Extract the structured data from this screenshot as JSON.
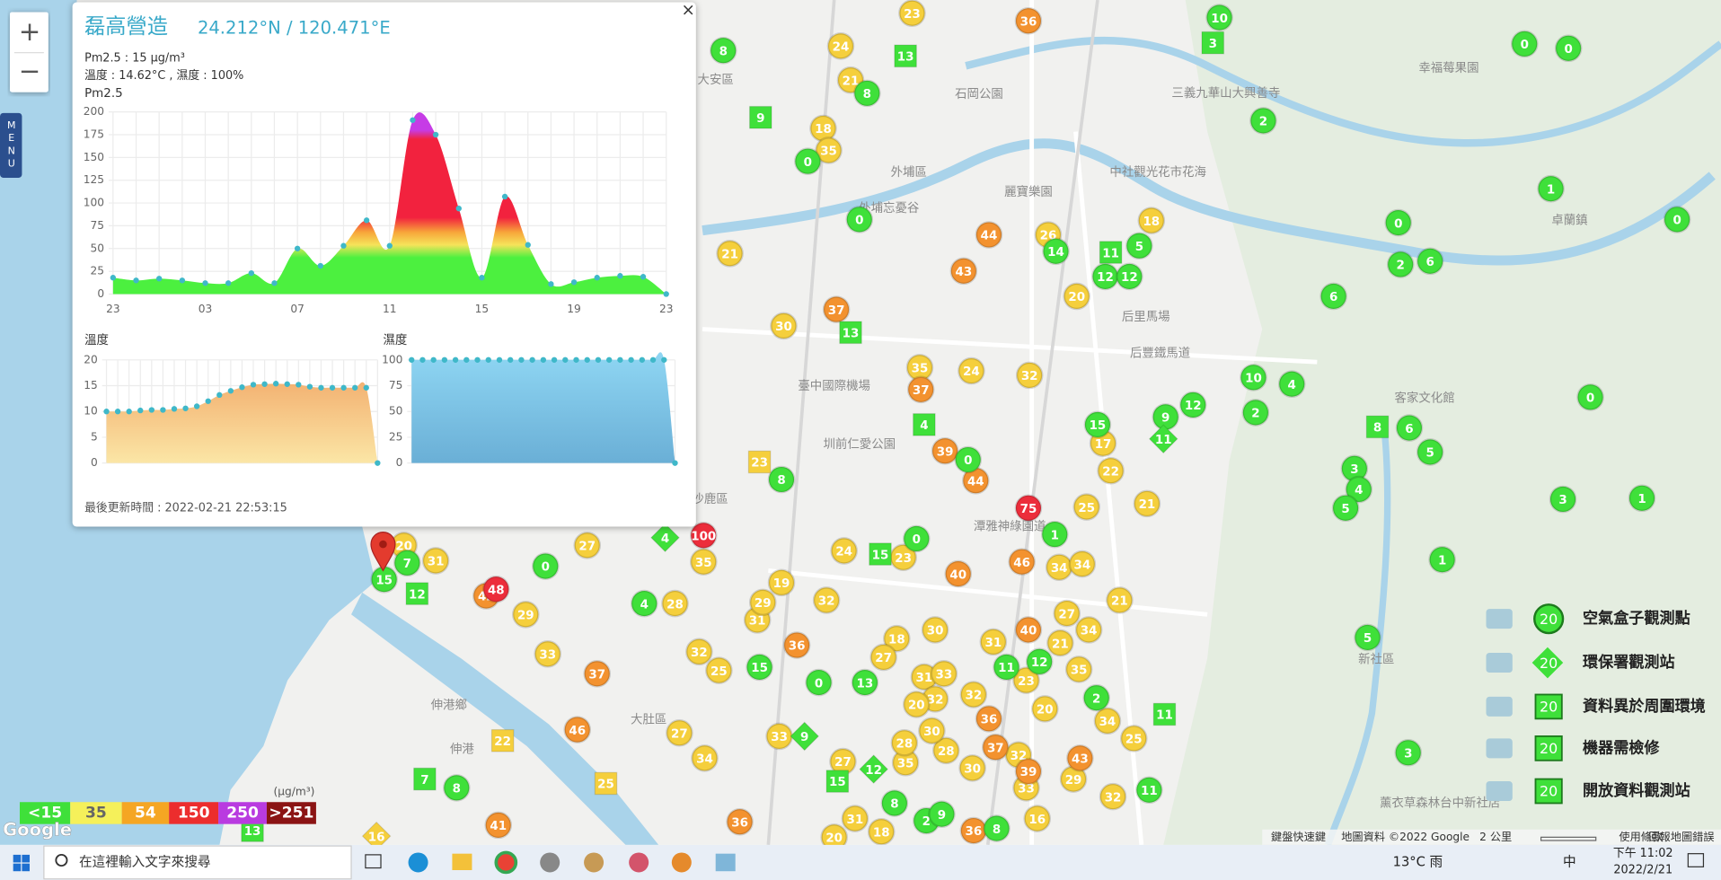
{
  "map_controls": {
    "zoom_in": "+",
    "zoom_out": "−",
    "menu": "MENU"
  },
  "popup": {
    "title": "磊高營造",
    "coords": "24.212°N / 120.471°E",
    "close": "×",
    "pm25": "Pm2.5 : 15 μg/m³",
    "weather": "溫度 : 14.62°C , 濕度 : 100%",
    "updated": "最後更新時間 : 2022-02-21 22:53:15"
  },
  "chart_data": [
    {
      "type": "area",
      "title": "Pm2.5",
      "categories": [
        "23",
        null,
        null,
        null,
        "03",
        null,
        null,
        null,
        "07",
        null,
        null,
        null,
        "11",
        null,
        null,
        null,
        "15",
        null,
        null,
        null,
        "19",
        null,
        null,
        null,
        "23"
      ],
      "values": [
        18,
        15,
        17,
        15,
        12,
        12,
        23,
        12,
        50,
        31,
        53,
        81,
        53,
        191,
        175,
        94,
        18,
        107,
        54,
        11,
        13,
        18,
        20,
        19,
        0
      ],
      "ylim": [
        0,
        200
      ],
      "yticks": [
        0,
        25,
        50,
        75,
        100,
        125,
        150,
        175,
        200
      ],
      "grid": true,
      "dot_color": "#3fb8c9"
    },
    {
      "type": "area",
      "title": "溫度",
      "values": [
        10,
        10,
        10,
        10.2,
        10.3,
        10.3,
        10.5,
        10.6,
        11,
        12,
        13.2,
        14,
        14.7,
        15.2,
        15.3,
        15.4,
        15.3,
        15.2,
        14.8,
        14.6,
        14.6,
        14.6,
        14.6,
        14.6,
        0
      ],
      "ylim": [
        0,
        20
      ],
      "yticks": [
        0,
        5,
        10,
        15,
        20
      ],
      "grid": true,
      "dot_color": "#3fb8c9"
    },
    {
      "type": "area",
      "title": "濕度",
      "values": [
        100,
        100,
        100,
        100,
        100,
        100,
        100,
        100,
        100,
        100,
        100,
        100,
        100,
        100,
        100,
        100,
        100,
        100,
        100,
        100,
        100,
        100,
        100,
        100,
        0
      ],
      "ylim": [
        0,
        100
      ],
      "yticks": [
        0,
        25,
        50,
        75,
        100
      ],
      "grid": true,
      "dot_color": "#3fb8c9"
    }
  ],
  "markers": [
    {
      "shape": "circle",
      "color": "#f5cf3c",
      "values": [
        23,
        24,
        21,
        18,
        35,
        26,
        18,
        20,
        21,
        30,
        35,
        24,
        32,
        17,
        22,
        21,
        25,
        24,
        23,
        34,
        34,
        27,
        35,
        20,
        31,
        19,
        29,
        28,
        32,
        21,
        33,
        32,
        25,
        31,
        29,
        30,
        27,
        34,
        18,
        27,
        31,
        33,
        32,
        31,
        21,
        35,
        20,
        32,
        23,
        20,
        34,
        25,
        27,
        34,
        33,
        27,
        35,
        28,
        28,
        30,
        32,
        29,
        32,
        16,
        31,
        18,
        20,
        30,
        33
      ]
    },
    {
      "shape": "circle",
      "color": "#f3922f",
      "values": [
        36,
        44,
        43,
        37,
        37,
        39,
        44,
        40,
        46,
        42,
        37,
        46,
        36,
        40,
        36,
        41,
        43,
        37,
        39,
        36,
        36
      ]
    },
    {
      "shape": "circle",
      "color": "#ec2d3b",
      "values": [
        75,
        100,
        48
      ]
    },
    {
      "shape": "circle",
      "color": "#3fe03a",
      "values": [
        10,
        0,
        0,
        8,
        8,
        2,
        0,
        1,
        0,
        0,
        0,
        14,
        5,
        12,
        12,
        2,
        6,
        6,
        10,
        4,
        2,
        12,
        0,
        15,
        9,
        6,
        5,
        0,
        8,
        3,
        4,
        5,
        3,
        1,
        1,
        0,
        1,
        0,
        15,
        7,
        4,
        5,
        15,
        0,
        11,
        12,
        13,
        2,
        8,
        3,
        11,
        8,
        2,
        9,
        8
      ]
    },
    {
      "shape": "square",
      "color": "#3fe03a",
      "values": [
        13,
        3,
        9,
        11,
        13,
        4,
        15,
        12,
        7,
        8,
        11,
        13,
        15
      ]
    },
    {
      "shape": "square",
      "color": "#f5cf3c",
      "values": [
        23,
        22,
        25
      ]
    },
    {
      "shape": "diamond",
      "color": "#3fe03a",
      "values": [
        11,
        4,
        9,
        12
      ]
    },
    {
      "shape": "diamond",
      "color": "#f5cf3c",
      "values": [
        16
      ]
    }
  ],
  "places": [
    "大安區",
    "石岡公園",
    "外埔區",
    "外埔忘憂谷",
    "麗寶樂園",
    "中社觀光花市花海",
    "三義九華山大興善寺",
    "幸福莓果園",
    "卓蘭鎮",
    "后里馬場",
    "后豐鐵馬道",
    "臺中國際機場",
    "圳前仁愛公園",
    "潭雅神綠園道",
    "沙鹿區",
    "伸港鄉",
    "伸港",
    "大肚區",
    "新社區",
    "客家文化館",
    "薰衣草森林台中新社店"
  ],
  "level_legend": {
    "unit": "(μg/m³)",
    "items": [
      {
        "label": "<15",
        "color": "#3fe03a"
      },
      {
        "label": "35",
        "color": "#f5f05a"
      },
      {
        "label": "54",
        "color": "#f5a623"
      },
      {
        "label": "150",
        "color": "#ec2d2d"
      },
      {
        "label": "250",
        "color": "#b93be0"
      },
      {
        "label": ">251",
        "color": "#8b1414"
      }
    ]
  },
  "station_legend": [
    {
      "label": "空氣盒子觀測點",
      "marker": 20
    },
    {
      "label": "環保署觀測站",
      "marker": 20
    },
    {
      "label": "資料異於周圍環境",
      "marker": 20
    },
    {
      "label": "機器需檢修",
      "marker": 20
    },
    {
      "label": "開放資料觀測站",
      "marker": 20
    }
  ],
  "google": "Google",
  "footer": [
    "鍵盤快速鍵",
    "地圖資料 ©2022 Google",
    "2 公里",
    "使用條款",
    "回報地圖錯誤"
  ],
  "taskbar": {
    "search": "在這裡輸入文字來搜尋",
    "weather": "13°C 雨",
    "ime": "中",
    "time": "下午 11:02",
    "date": "2022/2/21"
  }
}
